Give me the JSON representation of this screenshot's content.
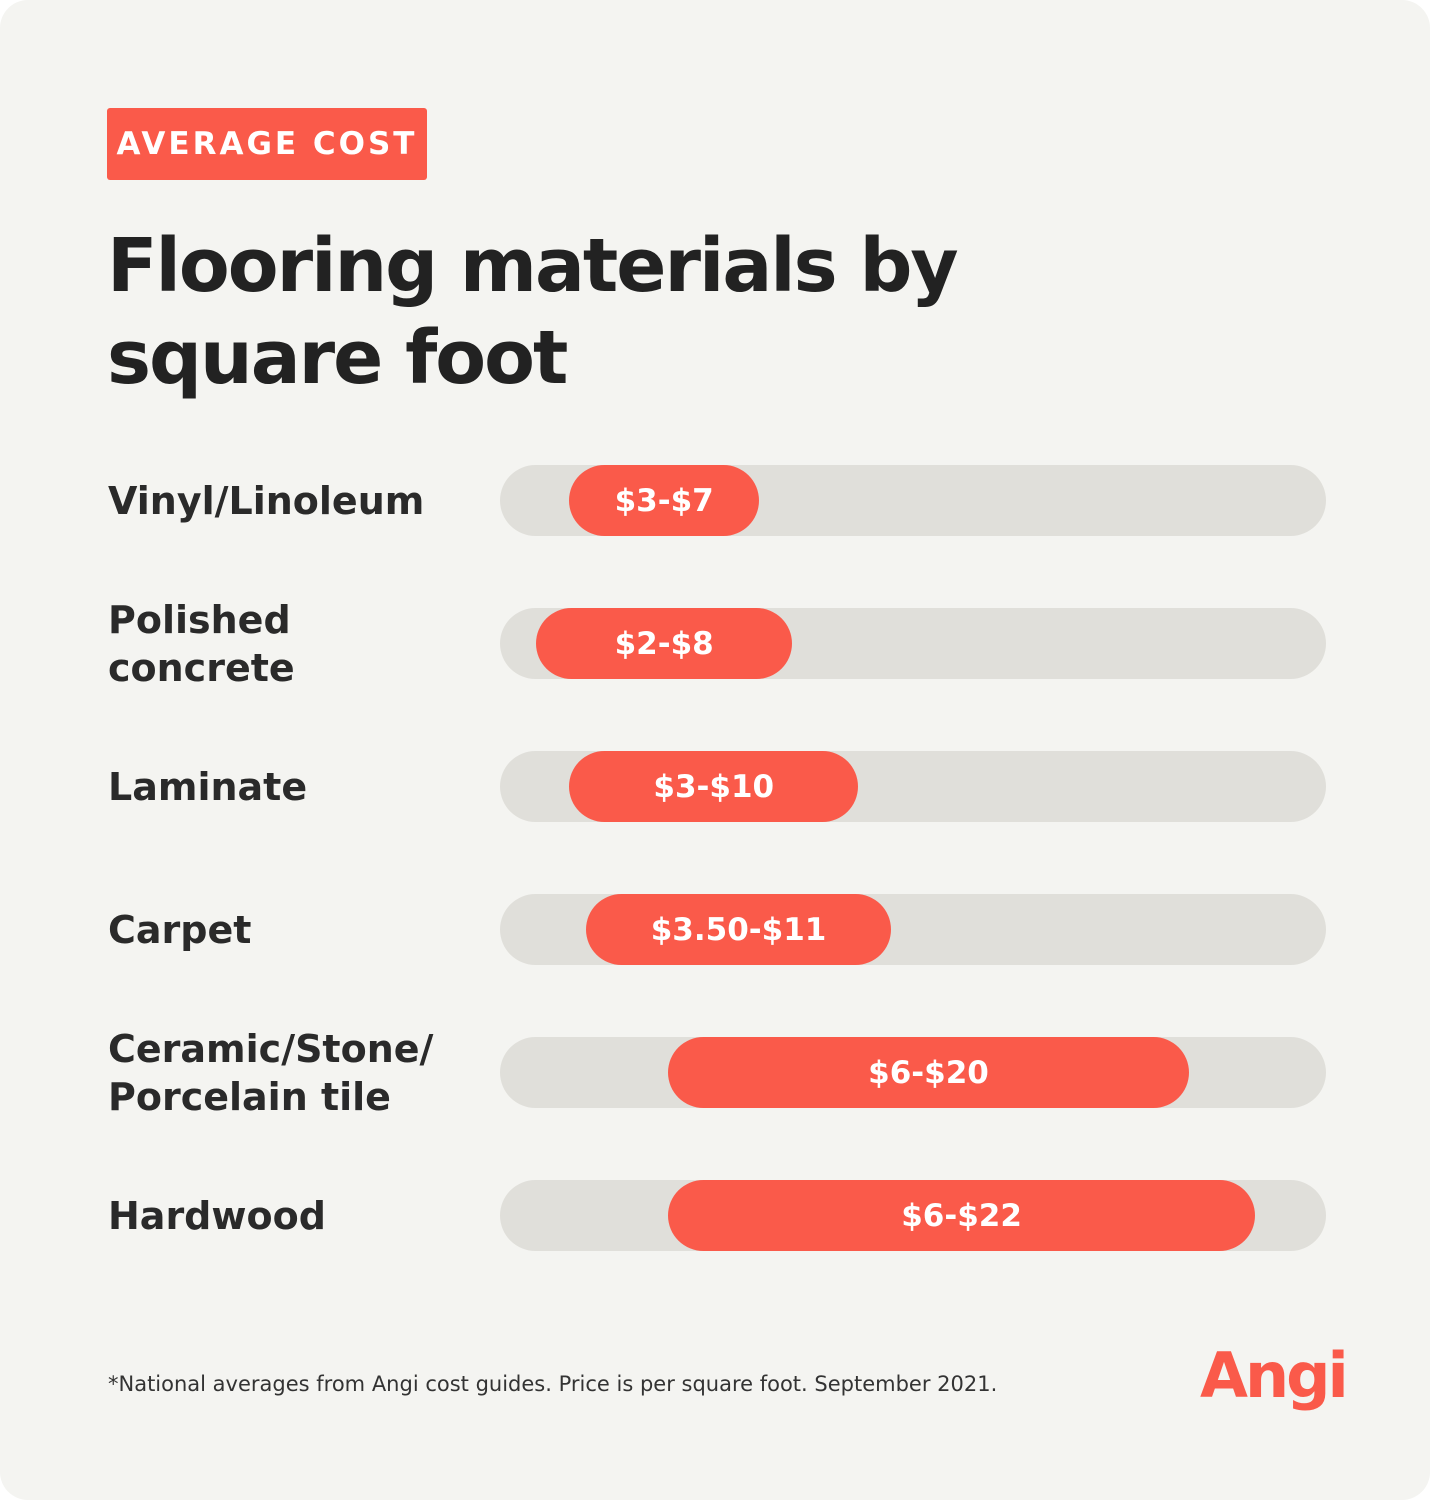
{
  "badge": "AVERAGE COST",
  "title": "Flooring materials by square foot",
  "footnote": "*National averages from Angi cost guides. Price is per square foot. September 2021.",
  "logo_text": "Angi",
  "colors": {
    "accent": "#fa5a4a",
    "track": "#e0dfda",
    "background": "#f4f4f1",
    "text": "#222222"
  },
  "chart_data": {
    "type": "bar",
    "orientation": "horizontal-range",
    "title": "Flooring materials by square foot",
    "categories": [
      "Vinyl/Linoleum",
      "Polished concrete",
      "Laminate",
      "Carpet",
      "Ceramic/Stone/ Porcelain tile",
      "Hardwood"
    ],
    "ranges": [
      [
        3,
        7
      ],
      [
        2,
        8
      ],
      [
        3,
        10
      ],
      [
        3.5,
        11
      ],
      [
        6,
        20
      ],
      [
        6,
        22
      ]
    ],
    "labels": [
      "$3-$7",
      "$2-$8",
      "$3-$10",
      "$3.50-$11",
      "$6-$20",
      "$6-$22"
    ],
    "xlim": [
      0,
      25
    ],
    "grid": false
  }
}
